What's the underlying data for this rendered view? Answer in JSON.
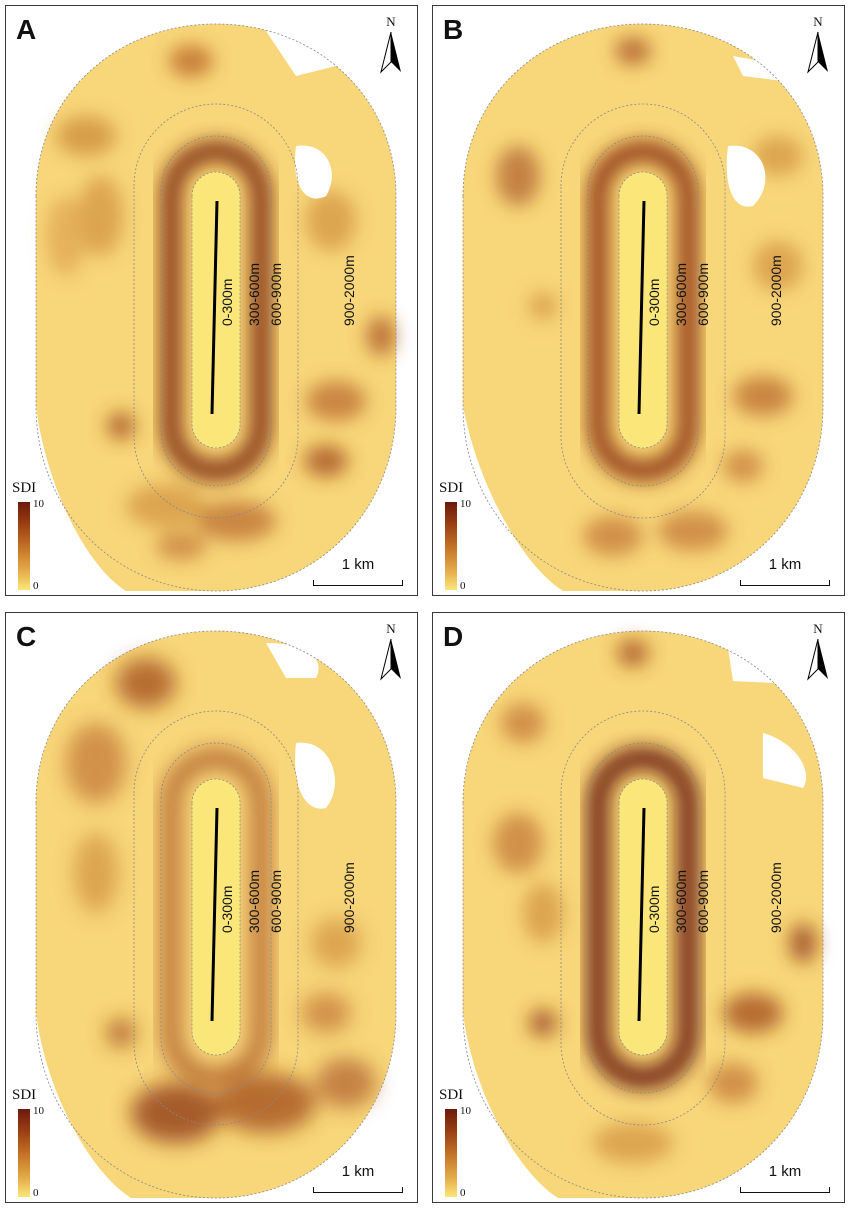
{
  "panels": [
    {
      "label": "A",
      "zones": [
        "0-300m",
        "300-600m",
        "600-900m",
        "900-2000m"
      ],
      "north": "N",
      "scale": "1 km",
      "legend": {
        "title": "SDI",
        "max": "10",
        "min": "0"
      }
    },
    {
      "label": "B",
      "zones": [
        "0-300m",
        "300-600m",
        "600-900m",
        "900-2000m"
      ],
      "north": "N",
      "scale": "1 km",
      "legend": {
        "title": "SDI",
        "max": "10",
        "min": "0"
      }
    },
    {
      "label": "C",
      "zones": [
        "0-300m",
        "300-600m",
        "600-900m",
        "900-2000m"
      ],
      "north": "N",
      "scale": "1 km",
      "legend": {
        "title": "SDI",
        "max": "10",
        "min": "0"
      }
    },
    {
      "label": "D",
      "zones": [
        "0-300m",
        "300-600m",
        "600-900m",
        "900-2000m"
      ],
      "north": "N",
      "scale": "1 km",
      "legend": {
        "title": "SDI",
        "max": "10",
        "min": "0"
      }
    }
  ],
  "colors": {
    "sdi_low": "#fbe779",
    "sdi_mid": "#e6b04d",
    "sdi_high": "#6b1a0c"
  }
}
